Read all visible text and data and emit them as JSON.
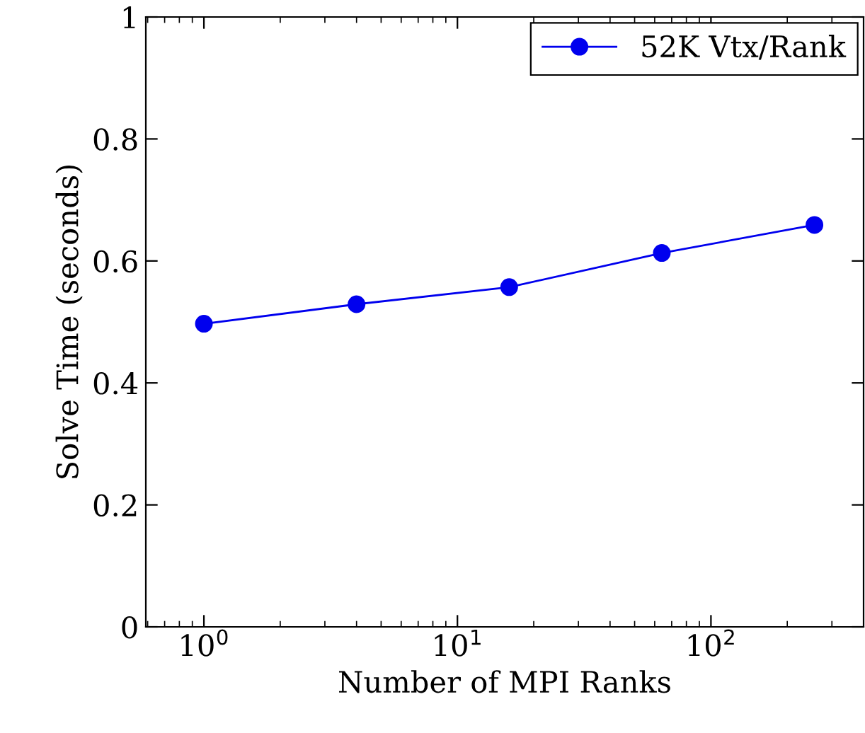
{
  "chart_data": {
    "type": "line",
    "xlabel": "Number of MPI Ranks",
    "ylabel": "Solve Time (seconds)",
    "x": [
      1,
      4,
      16,
      64,
      256
    ],
    "series": [
      {
        "name": "52K Vtx/Rank",
        "color": "#0000ee",
        "values": [
          0.497,
          0.529,
          0.557,
          0.613,
          0.659
        ]
      }
    ],
    "log": "x",
    "xlim": [
      0.59,
      400
    ],
    "xticks": [
      {
        "value": 1,
        "label": "10$^{0}$"
      },
      {
        "value": 10,
        "label": "10$^{1}$"
      },
      {
        "value": 100,
        "label": "10$^{2}$"
      }
    ],
    "ylim": [
      0,
      1
    ],
    "yticks": [
      0,
      0.2,
      0.4,
      0.6,
      0.8,
      1
    ],
    "grid": false,
    "legend": "top right",
    "marker": "circle",
    "line_style": "solid"
  }
}
